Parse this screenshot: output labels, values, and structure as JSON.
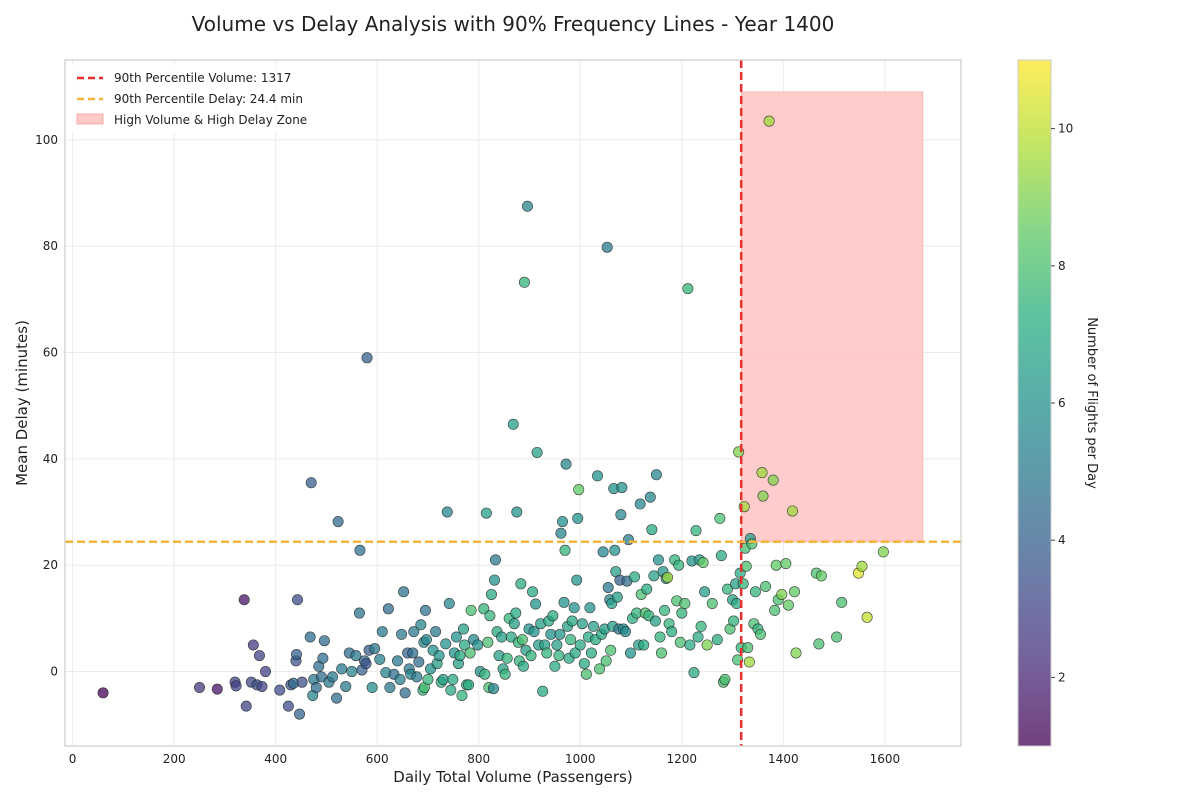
{
  "chart_data": {
    "type": "scatter",
    "title": "Volume vs Delay Analysis with 90% Frequency Lines - Year 1400",
    "xlabel": "Daily Total Volume (Passengers)",
    "ylabel": "Mean Delay (minutes)",
    "xlim": [
      -15,
      1750
    ],
    "ylim": [
      -14,
      115
    ],
    "xticks": [
      0,
      200,
      400,
      600,
      800,
      1000,
      1200,
      1400,
      1600
    ],
    "yticks": [
      0,
      20,
      40,
      60,
      80,
      100
    ],
    "grid": true,
    "legend_position": "top-left",
    "colormap": "viridis",
    "colorbar": {
      "label": "Number of Flights per Day",
      "range": [
        1,
        11
      ],
      "ticks": [
        2,
        4,
        6,
        8,
        10
      ]
    },
    "reference_lines": {
      "volume_p90": {
        "value": 1317,
        "label": "90th Percentile Volume: 1317",
        "color": "#e8302e"
      },
      "delay_p90": {
        "value": 24.4,
        "label": "90th Percentile Delay: 24.4 min",
        "color": "#f5b43a"
      }
    },
    "zone": {
      "label": "High Volume & High Delay Zone",
      "x": [
        1317,
        1675
      ],
      "y": [
        24.4,
        109
      ],
      "color": "#ffc9c9"
    },
    "points": [
      [
        60,
        -4,
        1
      ],
      [
        250,
        -3,
        2.6
      ],
      [
        285,
        -3.3,
        1.5
      ],
      [
        320,
        -2,
        3
      ],
      [
        322,
        -2.7,
        3
      ],
      [
        338,
        13.5,
        1.5
      ],
      [
        342,
        -6.5,
        3
      ],
      [
        352,
        -2,
        3.2
      ],
      [
        356,
        5,
        2.6
      ],
      [
        363,
        -2.5,
        3.3
      ],
      [
        368,
        3,
        3
      ],
      [
        373,
        -2.8,
        3
      ],
      [
        380,
        0,
        3
      ],
      [
        408,
        -3.5,
        3.2
      ],
      [
        425,
        -6.5,
        3.3
      ],
      [
        430,
        -2.5,
        3.5
      ],
      [
        435,
        -2.2,
        4.5
      ],
      [
        440,
        2,
        3.5
      ],
      [
        441,
        3.2,
        4
      ],
      [
        443,
        13.5,
        3.3
      ],
      [
        447,
        -8,
        4.2
      ],
      [
        452,
        -2,
        3.5
      ],
      [
        468,
        6.5,
        4.5
      ],
      [
        470,
        35.5,
        4
      ],
      [
        473,
        -4.5,
        5.5
      ],
      [
        475,
        -1.5,
        5
      ],
      [
        480,
        -3,
        4.5
      ],
      [
        485,
        1,
        4.5
      ],
      [
        490,
        -1,
        4.5
      ],
      [
        493,
        2.5,
        4.5
      ],
      [
        496,
        5.8,
        4.5
      ],
      [
        505,
        -2,
        5
      ],
      [
        512,
        -1,
        5
      ],
      [
        520,
        -5,
        4.5
      ],
      [
        523,
        28.2,
        4.5
      ],
      [
        530,
        0.5,
        5
      ],
      [
        538,
        -2.8,
        5
      ],
      [
        545,
        3.5,
        4.5
      ],
      [
        550,
        0,
        5.5
      ],
      [
        558,
        3,
        5
      ],
      [
        565,
        11,
        4.8
      ],
      [
        566,
        22.8,
        4.8
      ],
      [
        570,
        0.3,
        4.2
      ],
      [
        575,
        2,
        4.5
      ],
      [
        578,
        1.5,
        3.5
      ],
      [
        580,
        59,
        4
      ],
      [
        584,
        4,
        4
      ],
      [
        590,
        -3,
        5.8
      ],
      [
        595,
        4.3,
        5
      ],
      [
        605,
        2.3,
        5.3
      ],
      [
        610,
        7.5,
        5
      ],
      [
        617,
        -0.2,
        5.5
      ],
      [
        622,
        11.8,
        4.5
      ],
      [
        625,
        -3,
        5
      ],
      [
        633,
        -0.5,
        4.5
      ],
      [
        640,
        2,
        5
      ],
      [
        645,
        -1.5,
        5.3
      ],
      [
        648,
        7,
        5
      ],
      [
        652,
        15,
        4.8
      ],
      [
        655,
        -4,
        4.5
      ],
      [
        660,
        3.5,
        4.2
      ],
      [
        663,
        0.5,
        5
      ],
      [
        666,
        -0.5,
        5.5
      ],
      [
        670,
        3.5,
        4.5
      ],
      [
        672,
        7.5,
        5
      ],
      [
        678,
        -1,
        5
      ],
      [
        682,
        1.8,
        4.5
      ],
      [
        686,
        8.8,
        5.5
      ],
      [
        690,
        -3.5,
        7.5
      ],
      [
        692,
        5.5,
        5.5
      ],
      [
        693,
        -3,
        8
      ],
      [
        695,
        11.5,
        4.8
      ],
      [
        697,
        6,
        5.5
      ],
      [
        700,
        -1.5,
        7.5
      ],
      [
        705,
        0.5,
        6
      ],
      [
        710,
        4,
        6
      ],
      [
        715,
        7.5,
        5
      ],
      [
        718,
        1.5,
        6.5
      ],
      [
        722,
        3,
        6
      ],
      [
        726,
        -2,
        7.5
      ],
      [
        730,
        -1.5,
        6.5
      ],
      [
        735,
        5.2,
        6
      ],
      [
        738,
        30,
        5.5
      ],
      [
        742,
        12.8,
        5.5
      ],
      [
        745,
        -3.5,
        7
      ],
      [
        749,
        -1.5,
        7
      ],
      [
        752,
        3.5,
        6
      ],
      [
        756,
        6.5,
        6
      ],
      [
        760,
        1.5,
        6.5
      ],
      [
        763,
        3,
        7
      ],
      [
        767,
        -4.5,
        7.5
      ],
      [
        770,
        8,
        6.5
      ],
      [
        772,
        5,
        7
      ],
      [
        776,
        -2.5,
        7.5
      ],
      [
        780,
        -2.5,
        7
      ],
      [
        783,
        3.5,
        8
      ],
      [
        785,
        11.5,
        8
      ],
      [
        790,
        6,
        5.5
      ],
      [
        798,
        5,
        6
      ],
      [
        803,
        0,
        6
      ],
      [
        810,
        11.8,
        7.5
      ],
      [
        812,
        -0.5,
        7.5
      ],
      [
        815,
        29.8,
        6.5
      ],
      [
        818,
        5.5,
        8
      ],
      [
        820,
        -3,
        8
      ],
      [
        822,
        10.5,
        7.5
      ],
      [
        825,
        14.5,
        7
      ],
      [
        829,
        -3.2,
        5.5
      ],
      [
        831,
        17.2,
        6
      ],
      [
        833,
        21,
        5
      ],
      [
        836,
        7.5,
        7
      ],
      [
        840,
        3,
        6.5
      ],
      [
        845,
        6.5,
        6.5
      ],
      [
        848,
        0.5,
        6.5
      ],
      [
        852,
        -0.5,
        7.5
      ],
      [
        856,
        2.5,
        7.5
      ],
      [
        860,
        10,
        7.5
      ],
      [
        864,
        6.5,
        7
      ],
      [
        868,
        46.5,
        6.5
      ],
      [
        870,
        9,
        6.5
      ],
      [
        873,
        11,
        7
      ],
      [
        875,
        30,
        6
      ],
      [
        878,
        5.5,
        7.5
      ],
      [
        880,
        2,
        7.5
      ],
      [
        883,
        16.5,
        7
      ],
      [
        886,
        6,
        8
      ],
      [
        888,
        1,
        7
      ],
      [
        890,
        73.2,
        7.5
      ],
      [
        893,
        4,
        6.5
      ],
      [
        896,
        87.5,
        5.5
      ],
      [
        899,
        8,
        6
      ],
      [
        903,
        3,
        7.5
      ],
      [
        906,
        15,
        7
      ],
      [
        909,
        7.5,
        6
      ],
      [
        912,
        12.7,
        6
      ],
      [
        915,
        41.2,
        6.5
      ],
      [
        918,
        5,
        6.5
      ],
      [
        922,
        9,
        6.5
      ],
      [
        926,
        -3.7,
        7
      ],
      [
        930,
        5,
        6.5
      ],
      [
        934,
        3.5,
        7.5
      ],
      [
        938,
        9.5,
        7
      ],
      [
        942,
        7,
        6
      ],
      [
        946,
        10.5,
        7
      ],
      [
        950,
        1,
        7
      ],
      [
        954,
        5,
        6.5
      ],
      [
        958,
        3,
        7.5
      ],
      [
        960,
        7,
        6
      ],
      [
        962,
        26,
        5.5
      ],
      [
        965,
        28.2,
        6
      ],
      [
        968,
        13,
        6
      ],
      [
        970,
        22.8,
        7.5
      ],
      [
        972,
        39,
        5.5
      ],
      [
        975,
        8.5,
        6.5
      ],
      [
        978,
        2.5,
        7
      ],
      [
        981,
        6,
        7.5
      ],
      [
        984,
        9.5,
        7
      ],
      [
        988,
        12,
        6
      ],
      [
        990,
        3.5,
        7
      ],
      [
        993,
        17.2,
        6
      ],
      [
        995,
        28.8,
        6
      ],
      [
        997,
        34.2,
        8.5
      ],
      [
        1000,
        5,
        7
      ],
      [
        1004,
        9,
        6.5
      ],
      [
        1008,
        1.5,
        7
      ],
      [
        1012,
        -0.5,
        8
      ],
      [
        1016,
        6.5,
        7
      ],
      [
        1019,
        12,
        6
      ],
      [
        1022,
        3.5,
        7
      ],
      [
        1026,
        8.5,
        6.5
      ],
      [
        1030,
        6,
        7
      ],
      [
        1034,
        36.8,
        6
      ],
      [
        1038,
        0.5,
        8
      ],
      [
        1042,
        7,
        7
      ],
      [
        1045,
        22.5,
        5.5
      ],
      [
        1048,
        8,
        6.5
      ],
      [
        1051,
        2,
        8
      ],
      [
        1053,
        79.8,
        5
      ],
      [
        1055,
        15.8,
        5
      ],
      [
        1058,
        13.5,
        5.5
      ],
      [
        1060,
        4,
        8
      ],
      [
        1062,
        12.8,
        6.5
      ],
      [
        1064,
        8.5,
        6.5
      ],
      [
        1066,
        34.4,
        6
      ],
      [
        1068,
        22.8,
        6
      ],
      [
        1070,
        18.8,
        6.5
      ],
      [
        1073,
        14,
        6.5
      ],
      [
        1076,
        8,
        5
      ],
      [
        1078,
        17.2,
        4
      ],
      [
        1080,
        29.5,
        5.5
      ],
      [
        1082,
        34.6,
        6
      ],
      [
        1085,
        8,
        6
      ],
      [
        1089,
        7.5,
        5.5
      ],
      [
        1092,
        17,
        4.5
      ],
      [
        1095,
        24.8,
        5
      ],
      [
        1099,
        3.5,
        6
      ],
      [
        1103,
        10,
        7
      ],
      [
        1107,
        17.8,
        7
      ],
      [
        1111,
        11,
        7.5
      ],
      [
        1115,
        5,
        6.5
      ],
      [
        1118,
        31.5,
        5.5
      ],
      [
        1120,
        14.5,
        8
      ],
      [
        1125,
        5,
        7
      ],
      [
        1128,
        11,
        8
      ],
      [
        1131,
        15.5,
        7
      ],
      [
        1135,
        10.5,
        7.5
      ],
      [
        1138,
        32.8,
        5.5
      ],
      [
        1141,
        26.7,
        7
      ],
      [
        1145,
        18,
        6.5
      ],
      [
        1148,
        9.5,
        6.5
      ],
      [
        1150,
        37,
        5.5
      ],
      [
        1154,
        21,
        6
      ],
      [
        1157,
        6.5,
        7.5
      ],
      [
        1160,
        3.5,
        8
      ],
      [
        1163,
        18.8,
        6
      ],
      [
        1166,
        11.5,
        7.5
      ],
      [
        1169,
        17.5,
        6
      ],
      [
        1172,
        17.7,
        9.5
      ],
      [
        1175,
        9,
        7.5
      ],
      [
        1180,
        7.5,
        7
      ],
      [
        1186,
        21,
        7.5
      ],
      [
        1190,
        13.3,
        8
      ],
      [
        1194,
        20,
        7.5
      ],
      [
        1197,
        5.5,
        8
      ],
      [
        1200,
        11,
        7.5
      ],
      [
        1206,
        12.8,
        8
      ],
      [
        1212,
        72,
        7.5
      ],
      [
        1216,
        5,
        7
      ],
      [
        1220,
        20.8,
        6
      ],
      [
        1224,
        -0.2,
        7
      ],
      [
        1228,
        26.5,
        7.5
      ],
      [
        1232,
        6.5,
        7
      ],
      [
        1235,
        21,
        6.5
      ],
      [
        1238,
        8.5,
        7.5
      ],
      [
        1242,
        20.5,
        8.5
      ],
      [
        1245,
        15,
        6.5
      ],
      [
        1250,
        5,
        9
      ],
      [
        1260,
        12.8,
        8
      ],
      [
        1270,
        6,
        7
      ],
      [
        1275,
        28.8,
        8
      ],
      [
        1278,
        21.8,
        7
      ],
      [
        1282,
        -2,
        8
      ],
      [
        1285,
        -1.5,
        8
      ],
      [
        1290,
        15.5,
        7.5
      ],
      [
        1295,
        8,
        8
      ],
      [
        1300,
        13.5,
        6.5
      ],
      [
        1302,
        9.5,
        7.5
      ],
      [
        1306,
        16.5,
        6.5
      ],
      [
        1308,
        12.8,
        7
      ],
      [
        1310,
        2.2,
        8
      ],
      [
        1312,
        41.3,
        9
      ],
      [
        1315,
        18.5,
        7
      ],
      [
        1317,
        4.5,
        7.5
      ],
      [
        1321,
        16.5,
        7.5
      ],
      [
        1323,
        31,
        9.5
      ],
      [
        1325,
        23.2,
        8
      ],
      [
        1327,
        19.8,
        8
      ],
      [
        1330,
        4.5,
        8
      ],
      [
        1333,
        1.8,
        9.5
      ],
      [
        1335,
        25,
        6.5
      ],
      [
        1338,
        24,
        8
      ],
      [
        1342,
        9,
        8
      ],
      [
        1345,
        15,
        7.5
      ],
      [
        1350,
        8,
        7.5
      ],
      [
        1355,
        7,
        8
      ],
      [
        1358,
        37.4,
        9.5
      ],
      [
        1360,
        33,
        9
      ],
      [
        1365,
        16,
        8
      ],
      [
        1372,
        103.5,
        9.5
      ],
      [
        1380,
        36,
        9
      ],
      [
        1383,
        11.5,
        8
      ],
      [
        1386,
        20,
        8.5
      ],
      [
        1390,
        13.5,
        8
      ],
      [
        1397,
        14.5,
        9
      ],
      [
        1405,
        20.3,
        8.5
      ],
      [
        1410,
        12.5,
        8.5
      ],
      [
        1418,
        30.2,
        9.5
      ],
      [
        1422,
        15,
        8.5
      ],
      [
        1425,
        3.5,
        9
      ],
      [
        1465,
        18.5,
        8
      ],
      [
        1470,
        5.2,
        8
      ],
      [
        1475,
        18,
        8.5
      ],
      [
        1505,
        6.5,
        8
      ],
      [
        1515,
        13,
        8
      ],
      [
        1548,
        18.5,
        10.5
      ],
      [
        1555,
        19.8,
        9.5
      ],
      [
        1565,
        10.2,
        10
      ],
      [
        1597,
        22.5,
        9
      ]
    ]
  }
}
